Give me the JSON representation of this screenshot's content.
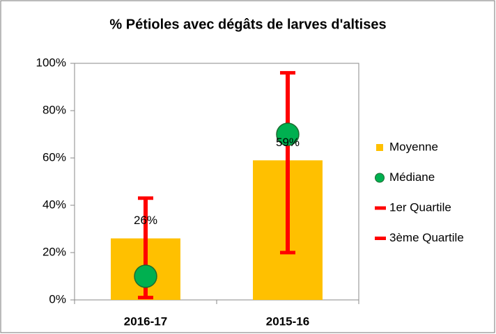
{
  "chart_data": {
    "type": "bar",
    "title": "% Pétioles avec dégâts de larves d'altises",
    "categories": [
      "2016-17",
      "2015-16"
    ],
    "series": [
      {
        "name": "Moyenne",
        "type": "bar",
        "color": "#ffc000",
        "values": [
          26,
          59
        ],
        "value_labels": [
          "26%",
          "59%"
        ]
      },
      {
        "name": "Médiane",
        "type": "scatter",
        "color": "#00b050",
        "values": [
          10,
          70
        ]
      },
      {
        "name": "1er Quartile",
        "type": "quartile",
        "color": "#ff0000",
        "values": [
          1,
          20
        ]
      },
      {
        "name": "3ème Quartile",
        "type": "quartile",
        "color": "#ff0000",
        "values": [
          43,
          96
        ]
      }
    ],
    "ylim": [
      0,
      100
    ],
    "yticks": [
      {
        "value": 0,
        "label": "0%"
      },
      {
        "value": 20,
        "label": "20%"
      },
      {
        "value": 40,
        "label": "40%"
      },
      {
        "value": 60,
        "label": "60%"
      },
      {
        "value": 80,
        "label": "80%"
      },
      {
        "value": 100,
        "label": "100%"
      }
    ],
    "legend": "right"
  }
}
